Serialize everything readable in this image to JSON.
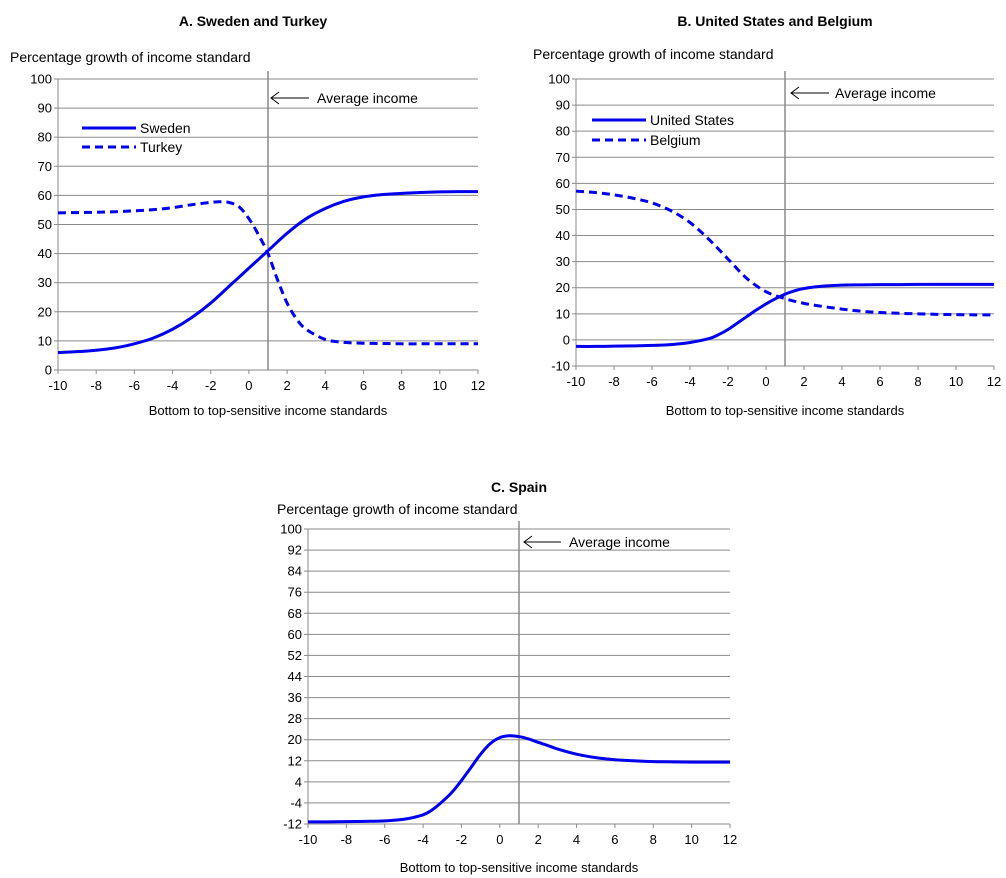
{
  "chart_data": [
    {
      "type": "line",
      "title": "A. Sweden and Turkey",
      "ylabel": "Percentage growth of income standard",
      "xlabel": "Bottom to top-sensitive income standards",
      "xlim": [
        -10,
        12
      ],
      "ylim": [
        0,
        100
      ],
      "x_ticks": [
        "-10",
        "-8",
        "-6",
        "-4",
        "-2",
        "0",
        "2",
        "4",
        "6",
        "8",
        "10",
        "12"
      ],
      "y_ticks": [
        "0",
        "10",
        "20",
        "30",
        "40",
        "50",
        "60",
        "70",
        "80",
        "90",
        "100"
      ],
      "grid": true,
      "legend": "top-left",
      "annotation": {
        "text": "Average income",
        "x": 1
      },
      "series": [
        {
          "name": "Sweden",
          "style": "solid",
          "color": "#0000ee",
          "x": [
            -10,
            -9,
            -8,
            -7,
            -6,
            -5,
            -4,
            -3,
            -2,
            -1,
            0,
            1,
            2,
            3,
            4,
            5,
            6,
            7,
            8,
            9,
            10,
            11,
            12
          ],
          "y": [
            6,
            6.3,
            6.8,
            7.6,
            9,
            11,
            14,
            18,
            23,
            29,
            35,
            41,
            47,
            52,
            55.5,
            58,
            59.5,
            60.3,
            60.7,
            61,
            61.2,
            61.3,
            61.3
          ]
        },
        {
          "name": "Turkey",
          "style": "dashed",
          "color": "#0000ee",
          "x": [
            -10,
            -9,
            -8,
            -7,
            -6,
            -5,
            -4,
            -3,
            -2,
            -1.5,
            -1,
            -0.5,
            0,
            0.5,
            1,
            1.5,
            2,
            2.5,
            3,
            4,
            5,
            6,
            7,
            8,
            9,
            10,
            11,
            12
          ],
          "y": [
            54,
            54.1,
            54.2,
            54.4,
            54.7,
            55.1,
            55.8,
            56.8,
            57.6,
            57.8,
            57.5,
            56,
            52,
            46.5,
            40,
            31,
            23,
            17.5,
            14,
            10.5,
            9.5,
            9.2,
            9.1,
            9,
            9,
            9,
            9,
            9
          ]
        }
      ]
    },
    {
      "type": "line",
      "title": "B. United States and Belgium",
      "ylabel": "Percentage growth of income standard",
      "xlabel": "Bottom to top-sensitive income standards",
      "xlim": [
        -10,
        12
      ],
      "ylim": [
        -10,
        100
      ],
      "x_ticks": [
        "-10",
        "-8",
        "-6",
        "-4",
        "-2",
        "0",
        "2",
        "4",
        "6",
        "8",
        "10",
        "12"
      ],
      "y_ticks": [
        "-10",
        "0",
        "10",
        "20",
        "30",
        "40",
        "50",
        "60",
        "70",
        "80",
        "90",
        "100"
      ],
      "grid": true,
      "legend": "top-left",
      "annotation": {
        "text": "Average  income",
        "x": 1
      },
      "series": [
        {
          "name": "United States",
          "style": "solid",
          "color": "#0000ee",
          "x": [
            -10,
            -9,
            -8,
            -7,
            -6,
            -5,
            -4,
            -3,
            -2.5,
            -2,
            -1.5,
            -1,
            -0.5,
            0,
            0.5,
            1,
            1.5,
            2,
            3,
            4,
            5,
            6,
            7,
            8,
            9,
            10,
            11,
            12
          ],
          "y": [
            -2.5,
            -2.5,
            -2.4,
            -2.3,
            -2.1,
            -1.8,
            -1,
            0.5,
            2,
            4,
            6.5,
            9,
            11.5,
            13.8,
            15.8,
            17.5,
            18.8,
            19.7,
            20.6,
            21,
            21.1,
            21.2,
            21.2,
            21.3,
            21.3,
            21.3,
            21.3,
            21.3
          ]
        },
        {
          "name": "Belgium",
          "style": "dashed",
          "color": "#0000ee",
          "x": [
            -10,
            -9,
            -8,
            -7,
            -6,
            -5,
            -4,
            -3,
            -2,
            -1,
            0,
            1,
            2,
            3,
            4,
            5,
            6,
            7,
            8,
            9,
            10,
            11,
            12
          ],
          "y": [
            57,
            56.5,
            55.6,
            54.3,
            52.5,
            49.5,
            45,
            38.5,
            31,
            23.5,
            18.5,
            15.8,
            14,
            12.8,
            11.8,
            11,
            10.5,
            10.2,
            10,
            9.8,
            9.7,
            9.6,
            9.6
          ]
        }
      ]
    },
    {
      "type": "line",
      "title": "C. Spain",
      "ylabel": "Percentage growth of income standard",
      "xlabel": "Bottom to top-sensitive income standards",
      "xlim": [
        -10,
        12
      ],
      "ylim": [
        -12,
        100
      ],
      "x_ticks": [
        "-10",
        "-8",
        "-6",
        "-4",
        "-2",
        "0",
        "2",
        "4",
        "6",
        "8",
        "10",
        "12"
      ],
      "y_ticks": [
        "-12",
        "-4",
        "4",
        "12",
        "20",
        "28",
        "36",
        "44",
        "52",
        "60",
        "68",
        "76",
        "84",
        "92",
        "100"
      ],
      "grid": true,
      "legend": "none",
      "annotation": {
        "text": "Average income",
        "x": 1
      },
      "series": [
        {
          "style": "solid",
          "color": "#0000ee",
          "x": [
            -10,
            -9,
            -8,
            -7,
            -6,
            -5,
            -4,
            -3.5,
            -3,
            -2.5,
            -2,
            -1.5,
            -1,
            -0.5,
            0,
            0.5,
            1,
            1.5,
            2,
            2.5,
            3,
            4,
            5,
            6,
            7,
            8,
            9,
            10,
            11,
            12
          ],
          "y": [
            -11.2,
            -11.2,
            -11.1,
            -11,
            -10.8,
            -10.2,
            -8.5,
            -6.5,
            -3.5,
            0,
            4.5,
            9.5,
            14.5,
            18.5,
            20.8,
            21.5,
            21.2,
            20.3,
            19,
            17.8,
            16.5,
            14.5,
            13.2,
            12.4,
            12,
            11.7,
            11.6,
            11.5,
            11.5,
            11.5
          ]
        }
      ]
    }
  ]
}
